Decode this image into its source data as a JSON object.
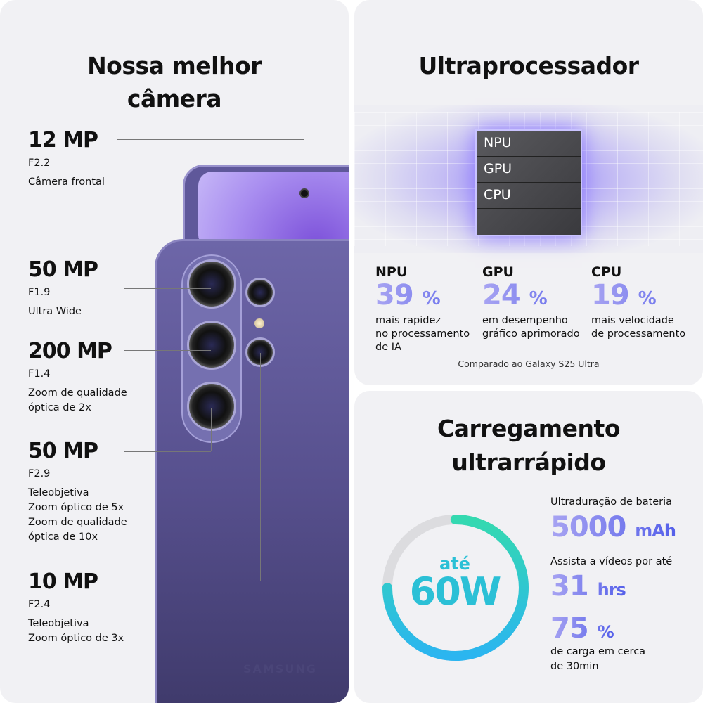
{
  "camera": {
    "title_line1": "Nossa melhor",
    "title_line2": "câmera",
    "specs": [
      {
        "mp": "12 MP",
        "aperture": "F2.2",
        "desc": [
          "Câmera frontal"
        ]
      },
      {
        "mp": "50 MP",
        "aperture": "F1.9",
        "desc": [
          "Ultra Wide"
        ]
      },
      {
        "mp": "200 MP",
        "aperture": "F1.4",
        "desc": [
          "Zoom de qualidade",
          "óptica de 2x"
        ]
      },
      {
        "mp": "50 MP",
        "aperture": "F2.9",
        "desc": [
          "Teleobjetiva",
          "Zoom óptico de 5x",
          "Zoom de qualidade",
          "óptica de 10x"
        ]
      },
      {
        "mp": "10 MP",
        "aperture": "F2.4",
        "desc": [
          "Teleobjetiva",
          "Zoom óptico de 3x"
        ]
      }
    ],
    "brand": "SAMSUNG"
  },
  "processor": {
    "title": "Ultraprocessador",
    "chip_labels": [
      "NPU",
      "GPU",
      "CPU"
    ],
    "stats": [
      {
        "label": "NPU",
        "value": "39",
        "unit": "%",
        "desc": [
          "mais rapidez",
          "no processamento",
          "de IA"
        ]
      },
      {
        "label": "GPU",
        "value": "24",
        "unit": "%",
        "desc": [
          "em desempenho",
          "gráfico aprimorado"
        ]
      },
      {
        "label": "CPU",
        "value": "19",
        "unit": "%",
        "desc": [
          "mais velocidade",
          "de processamento"
        ]
      }
    ],
    "note": "Comparado ao Galaxy S25 Ultra"
  },
  "charging": {
    "title_line1": "Carregamento",
    "title_line2": "ultrarrápido",
    "ring": {
      "prefix": "até",
      "value": "60W",
      "fill_fraction": 0.75,
      "colors": [
        "#34d9b0",
        "#2bb5f0"
      ],
      "track_color": "#dcdcdf"
    },
    "battery_label": "Ultraduração de bateria",
    "battery_value": "5000",
    "battery_unit": "mAh",
    "video_label": "Assista a vídeos por até",
    "video_value": "31",
    "video_unit": "hrs",
    "charge_value": "75",
    "charge_unit": "%",
    "charge_desc": [
      "de carga em cerca",
      "de 30min"
    ]
  },
  "colors": {
    "panel_bg": "#f1f1f4",
    "accent_start": "#a8a4f2",
    "accent_end": "#5560ea"
  }
}
